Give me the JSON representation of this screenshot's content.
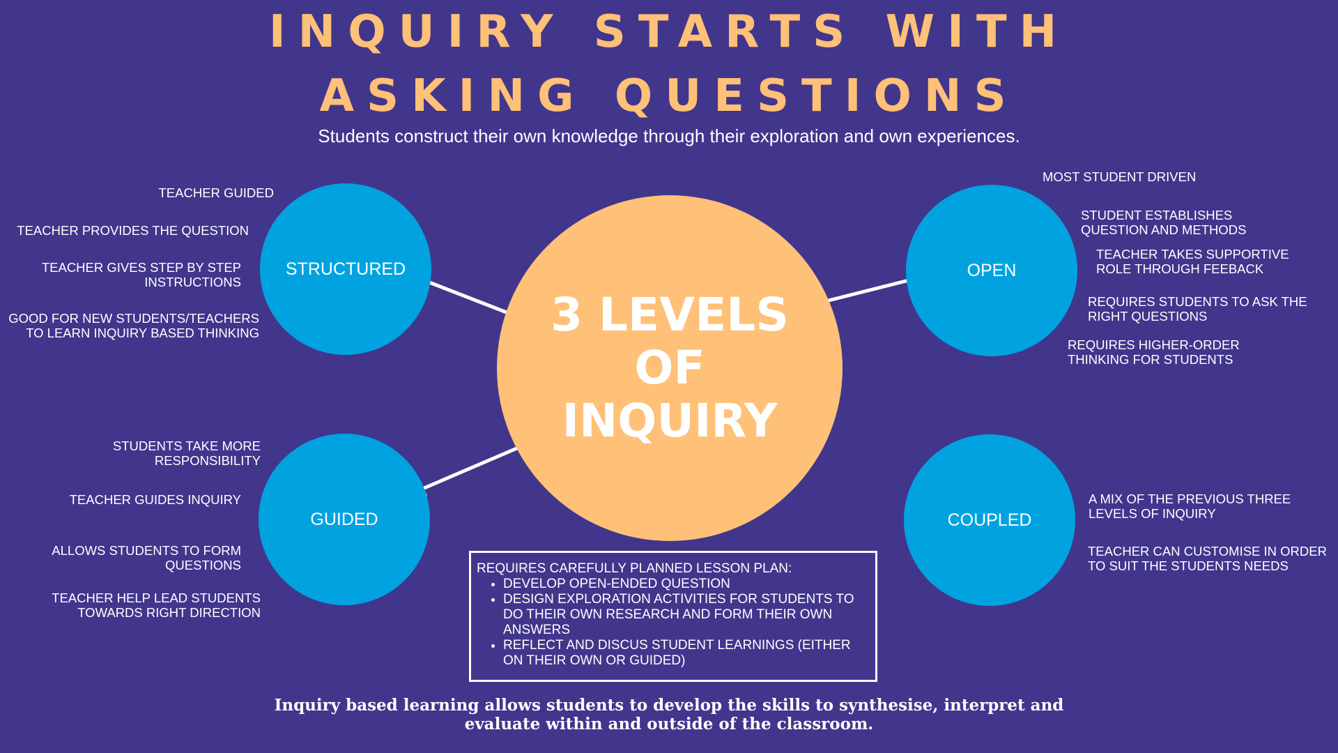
{
  "title": {
    "line1": "INQUIRY STARTS WITH",
    "line2": "ASKING QUESTIONS"
  },
  "subtitle": "Students construct their own knowledge through their exploration and own experiences.",
  "center": {
    "line1": "3 LEVELS",
    "line2": "OF",
    "line3": "INQUIRY"
  },
  "nodes": {
    "structured": "STRUCTURED",
    "guided": "GUIDED",
    "open": "OPEN",
    "coupled": "COUPLED"
  },
  "notes": {
    "structured": [
      "TEACHER GUIDED",
      "TEACHER PROVIDES THE QUESTION",
      [
        "TEACHER GIVES STEP BY STEP",
        "INSTRUCTIONS"
      ],
      [
        "GOOD FOR NEW STUDENTS/TEACHERS",
        "TO LEARN INQUIRY BASED THINKING"
      ]
    ],
    "guided": [
      [
        "STUDENTS TAKE MORE",
        "RESPONSIBILITY"
      ],
      "TEACHER GUIDES INQUIRY",
      [
        "ALLOWS STUDENTS TO FORM",
        "QUESTIONS"
      ],
      [
        "TEACHER HELP LEAD STUDENTS",
        "TOWARDS RIGHT DIRECTION"
      ]
    ],
    "open": [
      "MOST STUDENT DRIVEN",
      [
        "STUDENT ESTABLISHES",
        "QUESTION AND METHODS"
      ],
      [
        "TEACHER TAKES SUPPORTIVE",
        "ROLE THROUGH FEEBACK"
      ],
      [
        "REQUIRES STUDENTS TO ASK THE",
        "RIGHT QUESTIONS"
      ],
      [
        "REQUIRES HIGHER-ORDER",
        "THINKING FOR STUDENTS"
      ]
    ],
    "coupled": [
      [
        "A MIX OF THE PREVIOUS THREE",
        "LEVELS OF INQUIRY"
      ],
      [
        "TEACHER CAN CUSTOMISE IN ORDER",
        "TO SUIT THE STUDENTS NEEDS"
      ]
    ]
  },
  "lesson_plan": {
    "heading": "REQUIRES CAREFULLY PLANNED LESSON PLAN:",
    "items": [
      "DEVELOP OPEN-ENDED QUESTION",
      "DESIGN EXPLORATION ACTIVITIES FOR STUDENTS TO DO THEIR OWN RESEARCH AND FORM THEIR OWN ANSWERS",
      "REFLECT AND DISCUS STUDENT LEARNINGS (EITHER ON THEIR OWN OR GUIDED)"
    ]
  },
  "footer": {
    "line1": "Inquiry based learning allows students to develop the skills to synthesise, interpret and",
    "line2": "evaluate within and outside of the classroom."
  },
  "colors": {
    "background": "#41368c",
    "accent": "#ffc078",
    "node": "#00a3e0",
    "text": "#ffffff"
  }
}
